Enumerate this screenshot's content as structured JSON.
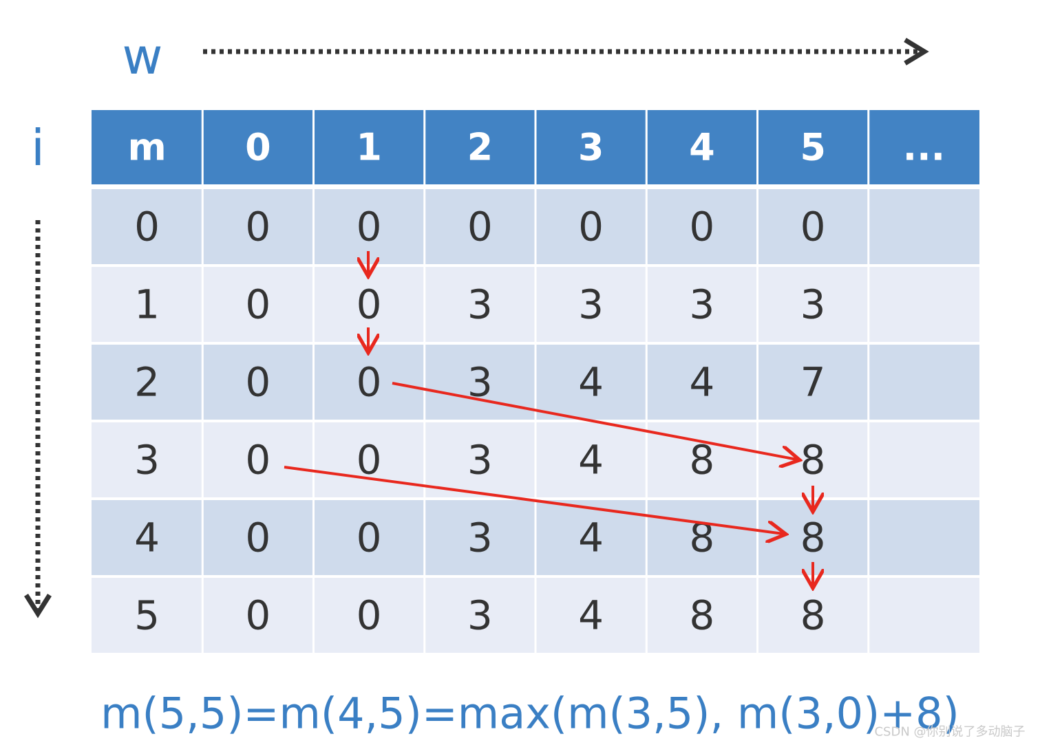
{
  "axes": {
    "horizontal": "w",
    "vertical": "i"
  },
  "table": {
    "header": [
      "m",
      "0",
      "1",
      "2",
      "3",
      "4",
      "5",
      "..."
    ],
    "rows": [
      [
        0,
        0,
        0,
        0,
        0,
        0,
        0
      ],
      [
        1,
        0,
        0,
        3,
        3,
        3,
        3
      ],
      [
        2,
        0,
        0,
        3,
        4,
        4,
        7
      ],
      [
        3,
        0,
        0,
        3,
        4,
        8,
        8
      ],
      [
        4,
        0,
        0,
        3,
        4,
        8,
        8
      ],
      [
        5,
        0,
        0,
        3,
        4,
        8,
        8
      ]
    ]
  },
  "formula": "m(5,5)=m(4,5)=max(m(3,5), m(3,0)+8)",
  "watermark": "CSDN @你别说了多动脑子"
}
